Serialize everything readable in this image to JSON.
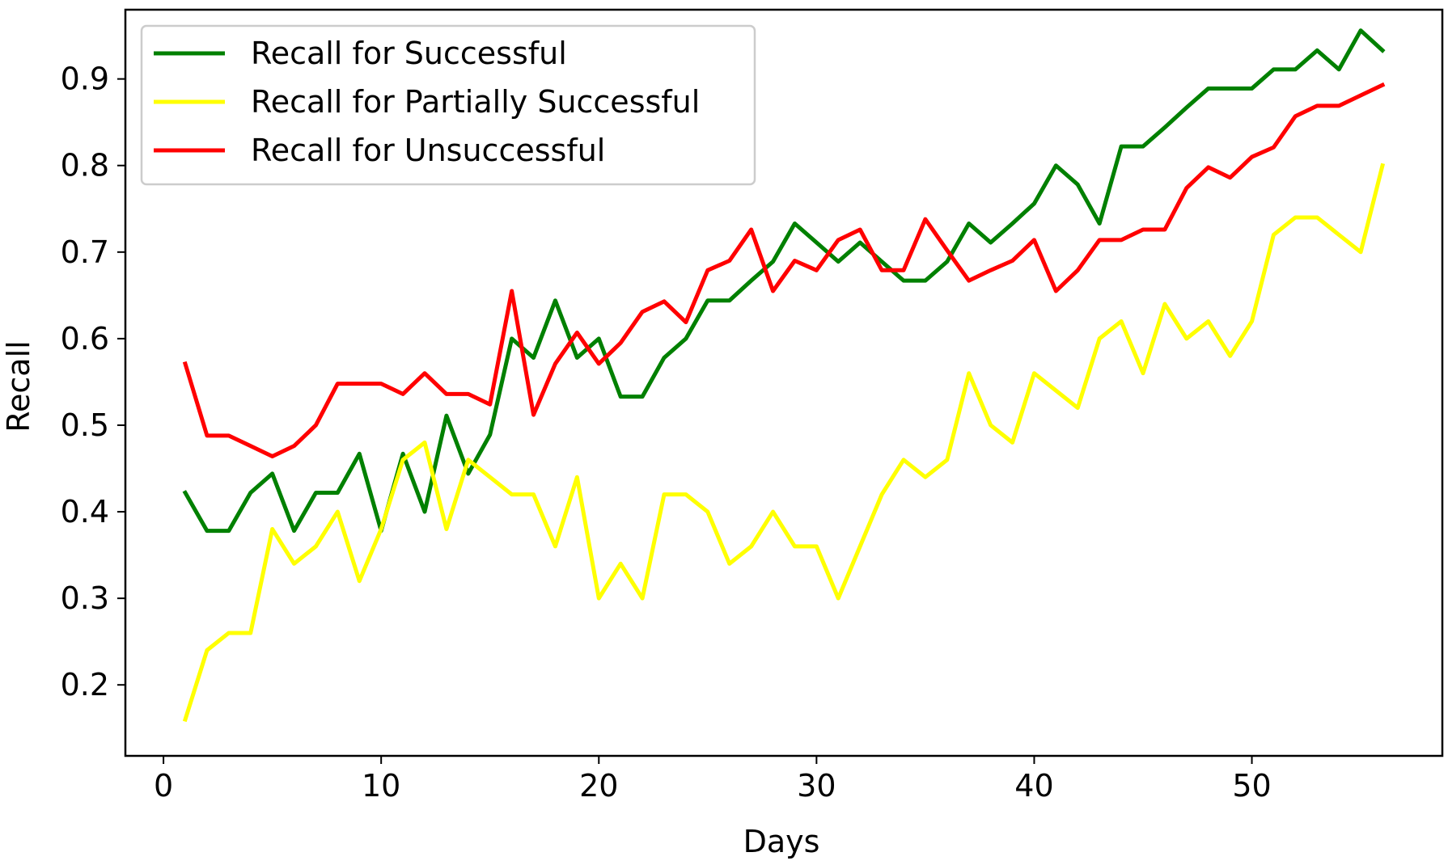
{
  "chart_data": {
    "type": "line",
    "title": "",
    "xlabel": "Days",
    "ylabel": "Recall",
    "xlim": [
      -1.75,
      58.75
    ],
    "ylim": [
      0.118,
      0.98
    ],
    "xticks": [
      0,
      10,
      20,
      30,
      40,
      50
    ],
    "yticks": [
      0.2,
      0.3,
      0.4,
      0.5,
      0.6,
      0.7,
      0.8,
      0.9
    ],
    "xtick_labels": [
      "0",
      "10",
      "20",
      "30",
      "40",
      "50"
    ],
    "ytick_labels": [
      "0.2",
      "0.3",
      "0.4",
      "0.5",
      "0.6",
      "0.7",
      "0.8",
      "0.9"
    ],
    "grid": false,
    "legend_position": "top-left",
    "x": [
      1,
      2,
      3,
      4,
      5,
      6,
      7,
      8,
      9,
      10,
      11,
      12,
      13,
      14,
      15,
      16,
      17,
      18,
      19,
      20,
      21,
      22,
      23,
      24,
      25,
      26,
      27,
      28,
      29,
      30,
      31,
      32,
      33,
      34,
      35,
      36,
      37,
      38,
      39,
      40,
      41,
      42,
      43,
      44,
      45,
      46,
      47,
      48,
      49,
      50,
      51,
      52,
      53,
      54,
      55,
      56
    ],
    "series": [
      {
        "name": "Recall for Successful",
        "color": "#008000",
        "values": [
          0.422,
          0.378,
          0.378,
          0.422,
          0.444,
          0.378,
          0.422,
          0.422,
          0.467,
          0.378,
          0.467,
          0.4,
          0.511,
          0.444,
          0.489,
          0.6,
          0.578,
          0.644,
          0.578,
          0.6,
          0.533,
          0.533,
          0.578,
          0.6,
          0.644,
          0.644,
          0.667,
          0.689,
          0.733,
          0.711,
          0.689,
          0.711,
          0.689,
          0.667,
          0.667,
          0.689,
          0.733,
          0.711,
          0.733,
          0.756,
          0.8,
          0.778,
          0.733,
          0.822,
          0.822,
          0.844,
          0.867,
          0.889,
          0.889,
          0.889,
          0.911,
          0.911,
          0.933,
          0.911,
          0.956,
          0.933
        ]
      },
      {
        "name": "Recall for Partially Successful",
        "color": "#ffff00",
        "values": [
          0.16,
          0.24,
          0.26,
          0.26,
          0.38,
          0.34,
          0.36,
          0.4,
          0.32,
          0.38,
          0.46,
          0.48,
          0.38,
          0.46,
          0.44,
          0.42,
          0.42,
          0.36,
          0.44,
          0.3,
          0.34,
          0.3,
          0.42,
          0.42,
          0.4,
          0.34,
          0.36,
          0.4,
          0.36,
          0.36,
          0.3,
          0.36,
          0.42,
          0.46,
          0.44,
          0.46,
          0.56,
          0.5,
          0.48,
          0.56,
          0.54,
          0.52,
          0.6,
          0.62,
          0.56,
          0.64,
          0.6,
          0.62,
          0.58,
          0.62,
          0.72,
          0.74,
          0.74,
          0.72,
          0.7,
          0.8
        ]
      },
      {
        "name": "Recall for Unsuccessful",
        "color": "#ff0000",
        "values": [
          0.571,
          0.488,
          0.488,
          0.476,
          0.464,
          0.476,
          0.5,
          0.548,
          0.548,
          0.548,
          0.536,
          0.56,
          0.536,
          0.536,
          0.524,
          0.655,
          0.512,
          0.571,
          0.607,
          0.571,
          0.595,
          0.631,
          0.643,
          0.619,
          0.679,
          0.69,
          0.726,
          0.655,
          0.69,
          0.679,
          0.714,
          0.726,
          0.679,
          0.679,
          0.738,
          0.702,
          0.667,
          0.679,
          0.69,
          0.714,
          0.655,
          0.679,
          0.714,
          0.714,
          0.726,
          0.726,
          0.774,
          0.798,
          0.786,
          0.81,
          0.821,
          0.857,
          0.869,
          0.869,
          0.881,
          0.893
        ]
      }
    ]
  }
}
